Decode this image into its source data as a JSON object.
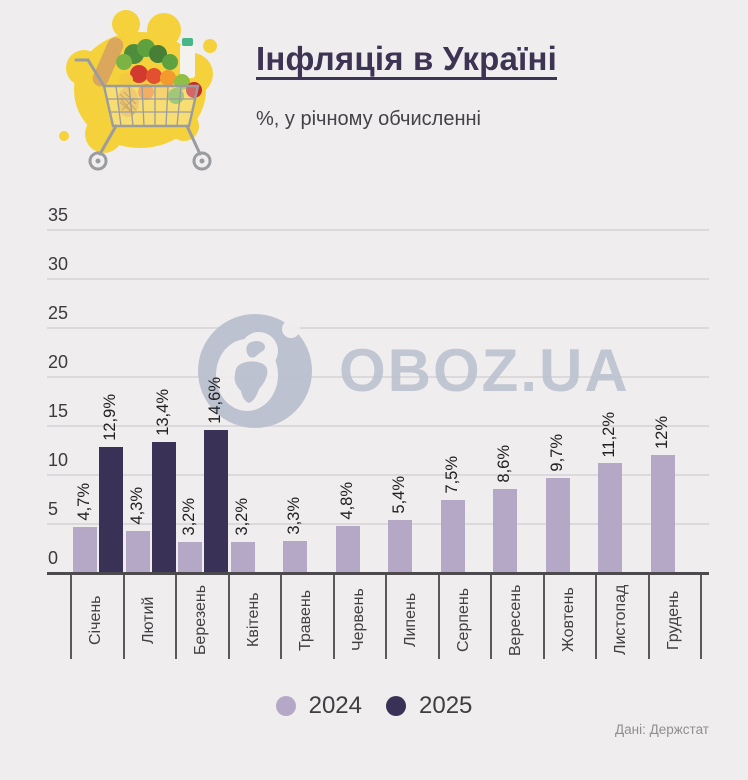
{
  "header": {
    "title": "Інфляція в Україні",
    "subtitle": "%, у річному обчисленні"
  },
  "watermark": {
    "brand_text": "OBOZ.UA"
  },
  "source_text": "Дані: Держстат",
  "icons": {
    "cart": "grocery-cart-illustration",
    "globe": "globe-logo"
  },
  "colors": {
    "background": "#efedee",
    "bar_2024": "#b5a8c6",
    "bar_2025": "#3a3157",
    "title": "#3d3454",
    "watermark": "#bdc3d0",
    "gridline": "#dcd9dc",
    "accent_yellow": "#f5d23c"
  },
  "chart_data": {
    "type": "bar",
    "title": "Інфляція в Україні",
    "subtitle": "%, у річному обчисленні",
    "categories": [
      "Січень",
      "Лютий",
      "Березень",
      "Квітень",
      "Травень",
      "Червень",
      "Липень",
      "Серпень",
      "Вересень",
      "Жовтень",
      "Листопад",
      "Грудень"
    ],
    "series": [
      {
        "name": "2024",
        "color": "#b5a8c6",
        "values": [
          4.7,
          4.3,
          3.2,
          3.2,
          3.3,
          4.8,
          5.4,
          7.5,
          8.6,
          9.7,
          11.2,
          12
        ],
        "labels": [
          "4,7%",
          "4,3%",
          "3,2%",
          "3,2%",
          "3,3%",
          "4,8%",
          "5,4%",
          "7,5%",
          "8,6%",
          "9,7%",
          "11,2%",
          "12%"
        ]
      },
      {
        "name": "2025",
        "color": "#3a3157",
        "values": [
          12.9,
          13.4,
          14.6,
          null,
          null,
          null,
          null,
          null,
          null,
          null,
          null,
          null
        ],
        "labels": [
          "12,9%",
          "13,4%",
          "14,6%",
          null,
          null,
          null,
          null,
          null,
          null,
          null,
          null,
          null
        ]
      }
    ],
    "ylim": [
      0,
      35
    ],
    "yticks": [
      0,
      5,
      10,
      15,
      20,
      25,
      30,
      35
    ],
    "grid": "horizontal",
    "legend_position": "bottom",
    "watermark": "OBOZ.UA",
    "source": "Дані: Держстат"
  }
}
